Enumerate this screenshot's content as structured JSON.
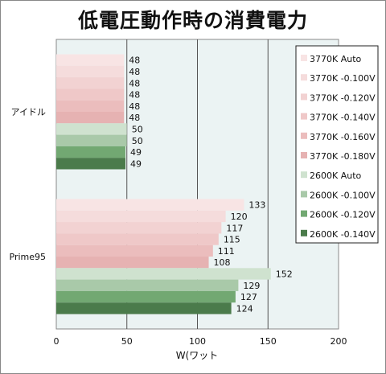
{
  "chart_data": {
    "type": "bar",
    "orientation": "horizontal",
    "title": "低電圧動作時の消費電力",
    "xlabel": "W(ワット",
    "ylabel": "",
    "xlim": [
      0,
      200
    ],
    "xticks": [
      "0",
      "50",
      "100",
      "150",
      "200"
    ],
    "grid": true,
    "legend_position": "right",
    "categories": [
      "アイドル",
      "Prime95"
    ],
    "series": [
      {
        "name": "3770K Auto",
        "values": [
          48,
          133
        ],
        "color": "#f8e4e4"
      },
      {
        "name": "3770K -0.100V",
        "values": [
          48,
          120
        ],
        "color": "#f5dcdc"
      },
      {
        "name": "3770K -0.120V",
        "values": [
          48,
          117
        ],
        "color": "#f2d2d2"
      },
      {
        "name": "3770K -0.140V",
        "values": [
          48,
          115
        ],
        "color": "#efc8c8"
      },
      {
        "name": "3770K -0.160V",
        "values": [
          48,
          111
        ],
        "color": "#ebbdbd"
      },
      {
        "name": "3770K -0.180V",
        "values": [
          48,
          108
        ],
        "color": "#e6b2b2"
      },
      {
        "name": "2600K Auto",
        "values": [
          50,
          152
        ],
        "color": "#cfe2cf"
      },
      {
        "name": "2600K -0.100V",
        "values": [
          50,
          129
        ],
        "color": "#a9c9a9"
      },
      {
        "name": "2600K -0.120V",
        "values": [
          49,
          127
        ],
        "color": "#72a872"
      },
      {
        "name": "2600K -0.140V",
        "values": [
          49,
          124
        ],
        "color": "#4b7b4b"
      }
    ]
  }
}
